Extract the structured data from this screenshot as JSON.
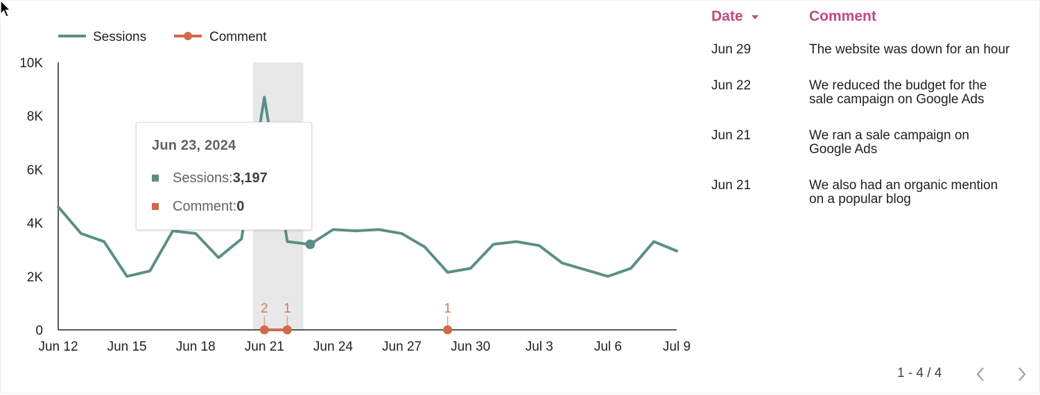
{
  "chart": {
    "legend": {
      "sessions_label": "Sessions",
      "comment_label": "Comment"
    },
    "tooltip": {
      "title": "Jun 23, 2024",
      "sessions_label": "Sessions: ",
      "sessions_value": "3,197",
      "comment_label": "Comment: ",
      "comment_value": "0"
    },
    "comment_counts": [
      "2",
      "1",
      "1"
    ],
    "colors": {
      "sessions": "#5b8f86",
      "comment": "#d0694a",
      "highlight_band": "#e8e8e8"
    }
  },
  "chart_data": {
    "type": "line",
    "x": [
      "Jun 12",
      "Jun 13",
      "Jun 14",
      "Jun 15",
      "Jun 16",
      "Jun 17",
      "Jun 18",
      "Jun 19",
      "Jun 20",
      "Jun 21",
      "Jun 22",
      "Jun 23",
      "Jun 24",
      "Jun 25",
      "Jun 26",
      "Jun 27",
      "Jun 28",
      "Jun 29",
      "Jun 30",
      "Jul 1",
      "Jul 2",
      "Jul 3",
      "Jul 4",
      "Jul 5",
      "Jul 6",
      "Jul 7",
      "Jul 8",
      "Jul 9"
    ],
    "x_tick_labels": [
      "Jun 12",
      "Jun 15",
      "Jun 18",
      "Jun 21",
      "Jun 24",
      "Jun 27",
      "Jun 30",
      "Jul 3",
      "Jul 6",
      "Jul 9"
    ],
    "y_tick_labels": [
      "0",
      "2K",
      "4K",
      "6K",
      "8K",
      "10K"
    ],
    "ylim": [
      0,
      10000
    ],
    "series": [
      {
        "name": "Sessions",
        "values": [
          4600,
          3600,
          3300,
          2000,
          2200,
          3700,
          3600,
          2700,
          3400,
          8700,
          3300,
          3197,
          3750,
          3700,
          3750,
          3600,
          3100,
          2150,
          2300,
          3200,
          3300,
          3150,
          2500,
          2250,
          2000,
          2300,
          3300,
          2950
        ]
      },
      {
        "name": "Comment",
        "points": [
          {
            "x": "Jun 21",
            "count": 2
          },
          {
            "x": "Jun 22",
            "count": 1
          },
          {
            "x": "Jun 29",
            "count": 1
          }
        ]
      }
    ],
    "highlighted_x": "Jun 22",
    "hovered_x": "Jun 23",
    "legend_position": "top-left",
    "grid": false
  },
  "table": {
    "headers": {
      "date": "Date",
      "comment": "Comment"
    },
    "rows": [
      {
        "date": "Jun 29",
        "comment_lines": [
          "The website was down for an hour"
        ]
      },
      {
        "date": "Jun 22",
        "comment_lines": [
          "We reduced the budget for the",
          "sale campaign on Google Ads"
        ]
      },
      {
        "date": "Jun 21",
        "comment_lines": [
          "We ran a sale campaign on",
          "Google Ads"
        ]
      },
      {
        "date": "Jun 21",
        "comment_lines": [
          "We also had an organic mention",
          "on a popular blog"
        ]
      }
    ],
    "pagination": "1 - 4 / 4",
    "header_color": "#c2497a"
  }
}
